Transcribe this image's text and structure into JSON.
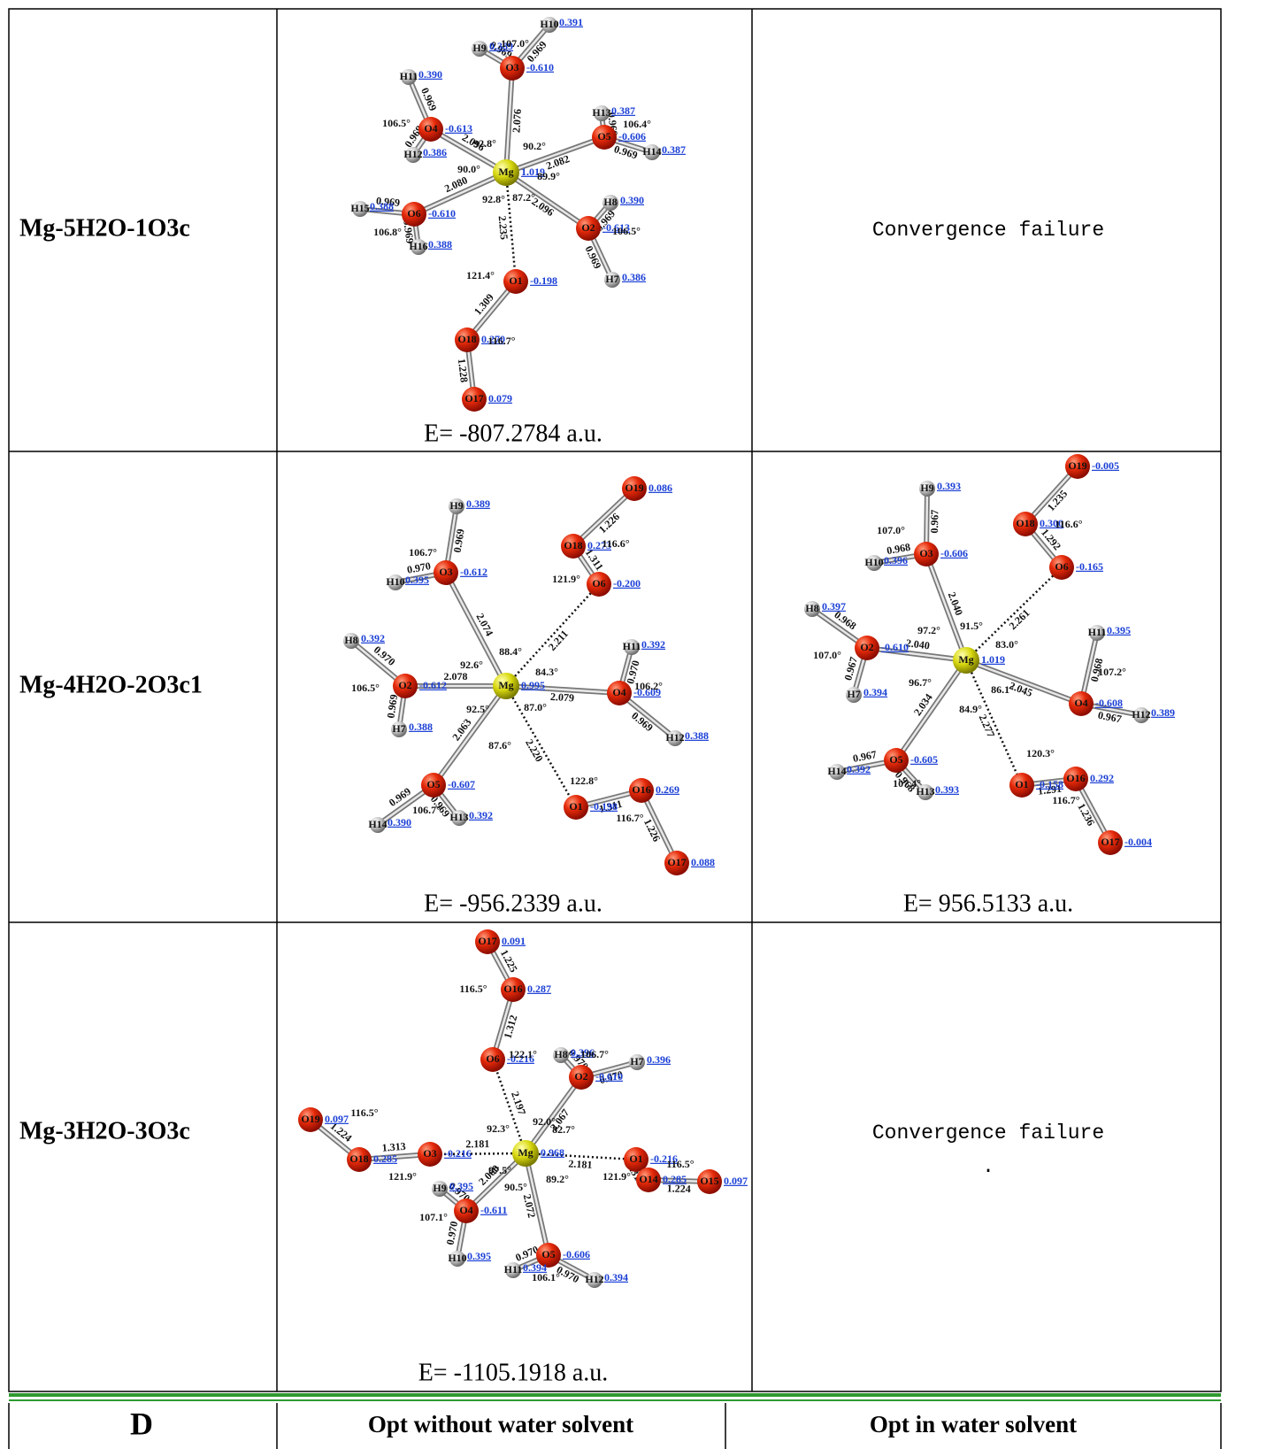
{
  "table": {
    "rows": [
      {
        "label": "Mg-5H2O-1O3c",
        "without": {
          "atoms": [
            [
              "Mg",
              "1.019"
            ],
            [
              "O3",
              "-0.610"
            ],
            [
              "H9",
              "0.389"
            ],
            [
              "H10",
              "0.391"
            ],
            [
              "O4",
              "-0.613"
            ],
            [
              "H11",
              "0.390"
            ],
            [
              "H12",
              "0.386"
            ],
            [
              "O5",
              "-0.606"
            ],
            [
              "H13",
              "0.387"
            ],
            [
              "H14",
              "0.387"
            ],
            [
              "O6",
              "-0.610"
            ],
            [
              "H15",
              "0.388"
            ],
            [
              "H16",
              "0.388"
            ],
            [
              "O2",
              "-0.613"
            ],
            [
              "H8",
              "0.390"
            ],
            [
              "H7",
              "0.386"
            ],
            [
              "O1",
              "-0.198"
            ],
            [
              "O18",
              "0.270"
            ],
            [
              "O17",
              "0.079"
            ]
          ],
          "bonds": [
            [
              "Mg",
              "O3",
              "2.076"
            ],
            [
              "Mg",
              "O4",
              "2.096"
            ],
            [
              "Mg",
              "O5",
              "2.082"
            ],
            [
              "Mg",
              "O6",
              "2.080"
            ],
            [
              "Mg",
              "O2",
              "2.096"
            ],
            [
              "Mg",
              "O1",
              "2.235",
              true
            ],
            [
              "O1",
              "O18",
              "1.309"
            ],
            [
              "O18",
              "O17",
              "1.228"
            ],
            [
              "O3",
              "H9",
              "0.969"
            ],
            [
              "O3",
              "H10",
              "0.969"
            ],
            [
              "O4",
              "H11",
              "0.969"
            ],
            [
              "O4",
              "H12",
              "0.969"
            ],
            [
              "O5",
              "H13",
              "0.969"
            ],
            [
              "O5",
              "H14",
              "0.969"
            ],
            [
              "O6",
              "H15",
              "0.969"
            ],
            [
              "O6",
              "H16",
              "0.969"
            ],
            [
              "O2",
              "H8",
              "0.969"
            ],
            [
              "O2",
              "H7",
              "0.969"
            ]
          ],
          "angles": [
            "107.0°",
            "106.5°",
            "92.8°",
            "90.2°",
            "106.4°",
            "90.0°",
            "89.9°",
            "92.8°",
            "87.2°",
            "106.8°",
            "106.5°",
            "121.4°",
            "116.7°"
          ],
          "energy": "E= -807.2784 a.u."
        },
        "water": {
          "text": "Convergence failure"
        }
      },
      {
        "label": "Mg-4H2O-2O3c1",
        "without": {
          "atoms": [
            [
              "Mg",
              "0.995"
            ],
            [
              "O3",
              "-0.612"
            ],
            [
              "H9",
              "0.389"
            ],
            [
              "H10",
              "0.395"
            ],
            [
              "O2",
              "-0.612"
            ],
            [
              "H8",
              "0.392"
            ],
            [
              "H7",
              "0.388"
            ],
            [
              "O5",
              "-0.607"
            ],
            [
              "H14",
              "0.390"
            ],
            [
              "H13",
              "0.392"
            ],
            [
              "O4",
              "-0.609"
            ],
            [
              "H11",
              "0.392"
            ],
            [
              "H12",
              "0.388"
            ],
            [
              "O6",
              "-0.200"
            ],
            [
              "O18",
              "0.273"
            ],
            [
              "O19",
              "0.086"
            ],
            [
              "O1",
              "-0.198"
            ],
            [
              "O16",
              "0.269"
            ],
            [
              "O17",
              "0.088"
            ]
          ],
          "bonds": [
            [
              "Mg",
              "O3",
              "2.074"
            ],
            [
              "Mg",
              "O2",
              "2.078"
            ],
            [
              "Mg",
              "O5",
              "2.063"
            ],
            [
              "Mg",
              "O4",
              "2.079"
            ],
            [
              "Mg",
              "O6",
              "2.211",
              true
            ],
            [
              "Mg",
              "O1",
              "2.220",
              true
            ],
            [
              "O6",
              "O18",
              "1.311"
            ],
            [
              "O18",
              "O19",
              "1.226"
            ],
            [
              "O1",
              "O16",
              "1.311"
            ],
            [
              "O16",
              "O17",
              "1.226"
            ],
            [
              "O3",
              "H9",
              "0.969"
            ],
            [
              "O3",
              "H10",
              "0.970"
            ],
            [
              "O2",
              "H8",
              "0.970"
            ],
            [
              "O2",
              "H7",
              "0.969"
            ],
            [
              "O5",
              "H14",
              "0.969"
            ],
            [
              "O5",
              "H13",
              "0.969"
            ],
            [
              "O4",
              "H11",
              "0.970"
            ],
            [
              "O4",
              "H12",
              "0.969"
            ]
          ],
          "angles": [
            "106.7°",
            "116.6°",
            "121.9°",
            "88.4°",
            "92.6°",
            "84.3°",
            "106.5°",
            "92.5°",
            "87.0°",
            "106.2°",
            "87.6°",
            "122.8°",
            "116.7°",
            "106.7°"
          ],
          "energy": "E= -956.2339 a.u."
        },
        "water": {
          "atoms": [
            [
              "Mg",
              "1.019"
            ],
            [
              "O3",
              "-0.606"
            ],
            [
              "H9",
              "0.393"
            ],
            [
              "H10",
              "0.396"
            ],
            [
              "O2",
              "-0.610"
            ],
            [
              "H8",
              "0.397"
            ],
            [
              "H7",
              "0.394"
            ],
            [
              "O4",
              "-0.608"
            ],
            [
              "H11",
              "0.395"
            ],
            [
              "H12",
              "0.389"
            ],
            [
              "O5",
              "-0.605"
            ],
            [
              "H14",
              "0.392"
            ],
            [
              "H13",
              "0.393"
            ],
            [
              "O6",
              "-0.165"
            ],
            [
              "O18",
              "0.300"
            ],
            [
              "O19",
              "-0.005"
            ],
            [
              "O1",
              "-0.158"
            ],
            [
              "O16",
              "0.292"
            ],
            [
              "O17",
              "-0.004"
            ]
          ],
          "bonds": [
            [
              "Mg",
              "O3",
              "2.040"
            ],
            [
              "Mg",
              "O2",
              "2.040"
            ],
            [
              "Mg",
              "O4",
              "2.045"
            ],
            [
              "Mg",
              "O5",
              "2.034"
            ],
            [
              "Mg",
              "O6",
              "2.261",
              true
            ],
            [
              "Mg",
              "O1",
              "2.277",
              true
            ],
            [
              "O6",
              "O18",
              "1.292"
            ],
            [
              "O18",
              "O19",
              "1.235"
            ],
            [
              "O1",
              "O16",
              "1.291"
            ],
            [
              "O16",
              "O17",
              "1.236"
            ],
            [
              "O3",
              "H9",
              "0.967"
            ],
            [
              "O3",
              "H10",
              "0.968"
            ],
            [
              "O2",
              "H8",
              "0.968"
            ],
            [
              "O2",
              "H7",
              "0.967"
            ],
            [
              "O4",
              "H11",
              "0.968"
            ],
            [
              "O4",
              "H12",
              "0.967"
            ],
            [
              "O5",
              "H14",
              "0.967"
            ],
            [
              "O5",
              "H13",
              "0.968"
            ]
          ],
          "angles": [
            "107.0°",
            "116.6°",
            "97.2°",
            "91.5°",
            "83.0°",
            "107.0°",
            "96.7°",
            "86.1°",
            "107.2°",
            "84.9°",
            "120.3°",
            "116.7°",
            "107.4°"
          ],
          "energy": "E= 956.5133 a.u."
        }
      },
      {
        "label": "Mg-3H2O-3O3c",
        "without": {
          "atoms": [
            [
              "Mg",
              "0.968"
            ],
            [
              "O6",
              "-0.216"
            ],
            [
              "O16",
              "0.287"
            ],
            [
              "O17",
              "0.091"
            ],
            [
              "O2",
              "-0.610"
            ],
            [
              "H8",
              "0.396"
            ],
            [
              "H7",
              "0.396"
            ],
            [
              "O3",
              "-0.216"
            ],
            [
              "O18",
              "0.285"
            ],
            [
              "O19",
              "0.097"
            ],
            [
              "O1",
              "-0.216"
            ],
            [
              "O14",
              "0.285"
            ],
            [
              "O15",
              "0.097"
            ],
            [
              "O4",
              "-0.611"
            ],
            [
              "H9",
              "0.395"
            ],
            [
              "H10",
              "0.395"
            ],
            [
              "O5",
              "-0.606"
            ],
            [
              "H11",
              "0.394"
            ],
            [
              "H12",
              "0.394"
            ]
          ],
          "bonds": [
            [
              "Mg",
              "O6",
              "2.197",
              true
            ],
            [
              "O6",
              "O16",
              "1.312"
            ],
            [
              "O16",
              "O17",
              "1.225"
            ],
            [
              "Mg",
              "O2",
              "2.067"
            ],
            [
              "O2",
              "H8",
              "0.970"
            ],
            [
              "O2",
              "H7",
              "0.970"
            ],
            [
              "Mg",
              "O3",
              "2.181",
              true
            ],
            [
              "O3",
              "O18",
              "1.313"
            ],
            [
              "O18",
              "O19",
              "1.224"
            ],
            [
              "Mg",
              "O1",
              "2.181",
              true
            ],
            [
              "O1",
              "O14",
              "1.313"
            ],
            [
              "O14",
              "O15",
              "1.224"
            ],
            [
              "Mg",
              "O4",
              "2.060"
            ],
            [
              "O4",
              "H9",
              "0.970"
            ],
            [
              "O4",
              "H10",
              "0.970"
            ],
            [
              "Mg",
              "O5",
              "2.072"
            ],
            [
              "O5",
              "H11",
              "0.970"
            ],
            [
              "O5",
              "H12",
              "0.970"
            ]
          ],
          "angles": [
            "116.5°",
            "122.1°",
            "106.7°",
            "116.5°",
            "92.0°",
            "92.3°",
            "82.7°",
            "121.9°",
            "116.5°",
            "121.9°",
            "97.5°",
            "89.2°",
            "90.5°",
            "107.1°",
            "106.1°"
          ],
          "energy": "E= -1105.1918 a.u."
        },
        "water": {
          "text": "Convergence failure",
          "note": "."
        }
      }
    ],
    "footer": [
      "D",
      "Opt without water solvent",
      "Opt in water solvent"
    ]
  }
}
